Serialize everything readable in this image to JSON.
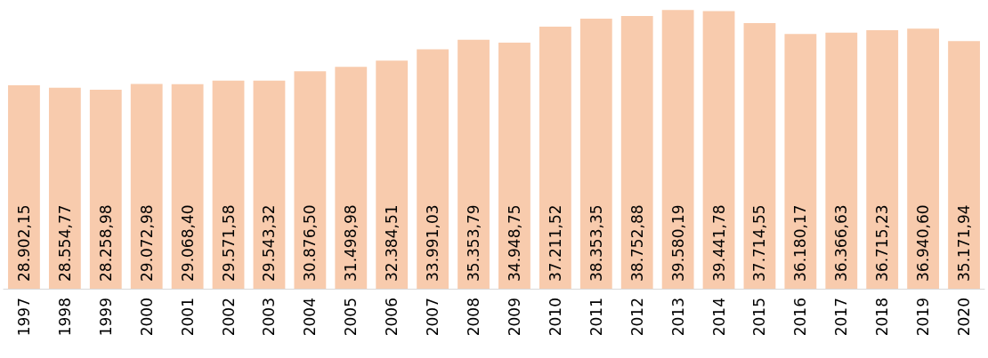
{
  "chart_data": {
    "type": "bar",
    "categories": [
      "1997",
      "1998",
      "1999",
      "2000",
      "2001",
      "2002",
      "2003",
      "2004",
      "2005",
      "2006",
      "2007",
      "2008",
      "2009",
      "2010",
      "2011",
      "2012",
      "2013",
      "2014",
      "2015",
      "2016",
      "2017",
      "2018",
      "2019",
      "2020"
    ],
    "values": [
      28902.15,
      28554.77,
      28258.98,
      29072.98,
      29068.4,
      29571.58,
      29543.32,
      30876.5,
      31498.98,
      32384.51,
      33991.03,
      35353.79,
      34948.75,
      37211.52,
      38353.35,
      38752.88,
      39580.19,
      39441.78,
      37714.55,
      36180.17,
      36366.63,
      36715.23,
      36940.6,
      35171.94
    ],
    "value_labels": [
      "28.902,15",
      "28.554,77",
      "28.258,98",
      "29.072,98",
      "29.068,40",
      "29.571,58",
      "29.543,32",
      "30.876,50",
      "31.498,98",
      "32.384,51",
      "33.991,03",
      "35.353,79",
      "34.948,75",
      "37.211,52",
      "38.353,35",
      "38.752,88",
      "39.580,19",
      "39.441,78",
      "37.714,55",
      "36.180,17",
      "36.366,63",
      "36.715,23",
      "36.940,60",
      "35.171,94"
    ],
    "color": "#f8cbad",
    "ylim": [
      0,
      40000
    ],
    "tick_labels": "x"
  }
}
